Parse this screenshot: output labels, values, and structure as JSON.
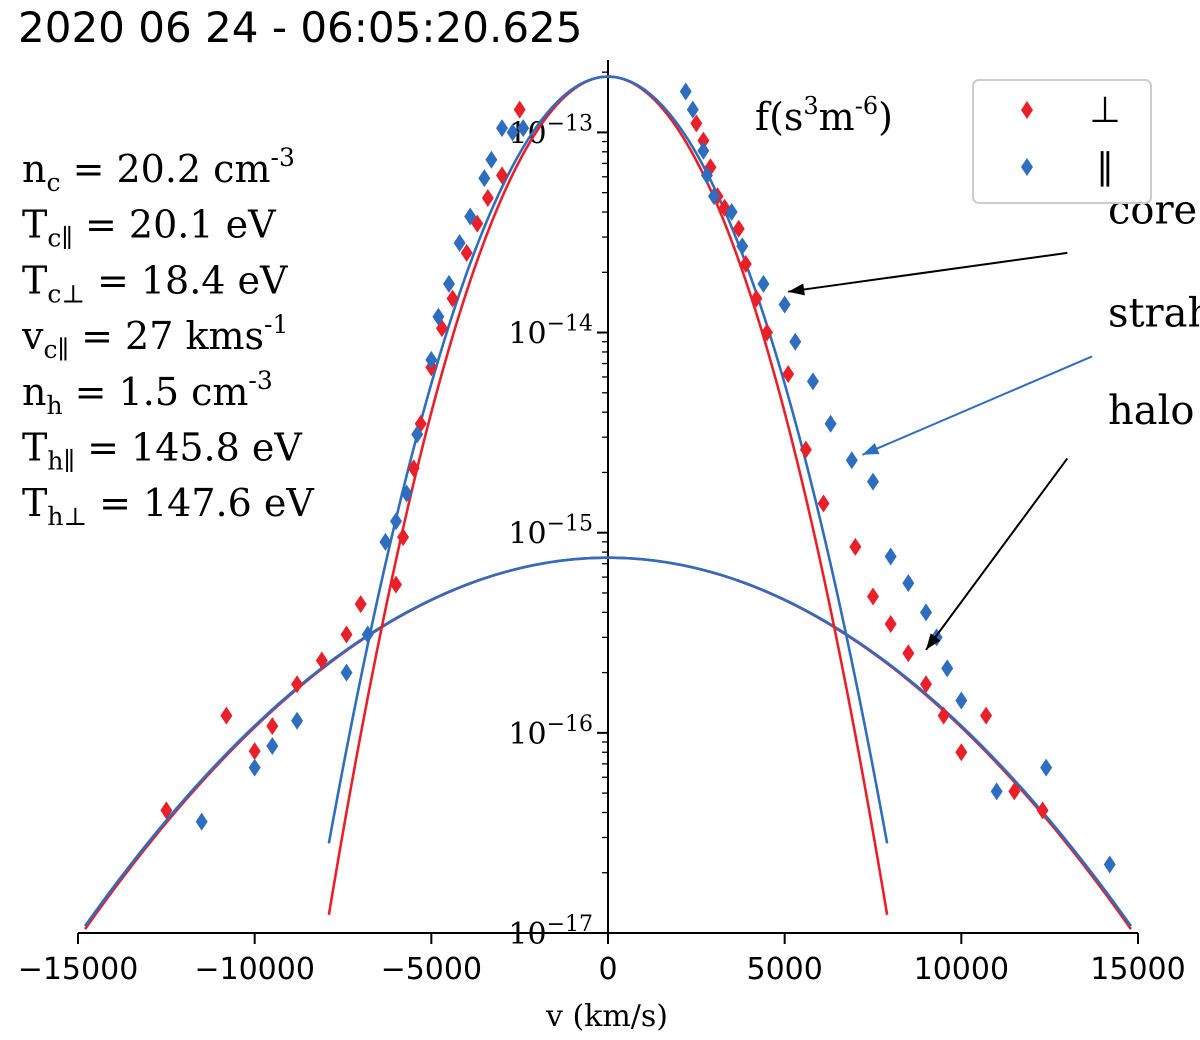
{
  "chart_data": {
    "type": "scatter",
    "title": "2020 06 24 - 06:05:20.625",
    "xlabel": "v (km/s)",
    "ylabel": "f(s^3m^-6)",
    "ylabel_parts": {
      "base": "f(s",
      "exp1": "3",
      "mid": "m",
      "exp2": "-6",
      "end": ")"
    },
    "xlim": [
      -15000,
      15000
    ],
    "ylim": [
      1e-17,
      2.3e-13
    ],
    "yscale": "log",
    "x_ticks": [
      {
        "value": -15000,
        "label": "−15000"
      },
      {
        "value": -10000,
        "label": "−10000"
      },
      {
        "value": -5000,
        "label": "−5000"
      },
      {
        "value": 0,
        "label": "0"
      },
      {
        "value": 5000,
        "label": "5000"
      },
      {
        "value": 10000,
        "label": "10000"
      },
      {
        "value": 15000,
        "label": "15000"
      }
    ],
    "y_ticks": [
      {
        "value": 1e-13,
        "base": "10",
        "exp": "−13"
      },
      {
        "value": 1e-14,
        "base": "10",
        "exp": "−14"
      },
      {
        "value": 1e-15,
        "base": "10",
        "exp": "−15"
      },
      {
        "value": 1e-16,
        "base": "10",
        "exp": "−16"
      },
      {
        "value": 1e-17,
        "base": "10",
        "exp": "−17"
      }
    ],
    "legend": {
      "position": "top-right",
      "entries": [
        {
          "label": "⊥",
          "color": "#e8202a",
          "marker": "diamond"
        },
        {
          "label": "∥",
          "color": "#2f6dbf",
          "marker": "diamond"
        }
      ]
    },
    "parameters": [
      {
        "sym": "n",
        "sub": "c",
        "text": " = 20.2 cm",
        "sup": "-3"
      },
      {
        "sym": "T",
        "sub": "c∥",
        "text": " = 20.1 eV",
        "sup": ""
      },
      {
        "sym": "T",
        "sub": "c⊥",
        "text": " = 18.4 eV",
        "sup": ""
      },
      {
        "sym": "v",
        "sub": "c∥",
        "text": " = 27 kms",
        "sup": "-1"
      },
      {
        "sym": "n",
        "sub": "h",
        "text": " = 1.5 cm",
        "sup": "-3"
      },
      {
        "sym": "T",
        "sub": "h∥",
        "text": " = 145.8 eV",
        "sup": ""
      },
      {
        "sym": "T",
        "sub": "h⊥",
        "text": " = 147.6 eV",
        "sup": ""
      }
    ],
    "annotations": [
      {
        "text": "core",
        "text_x": 14150,
        "text_y": 3.5e-14,
        "arrow_from": [
          13000,
          2.5e-14
        ],
        "arrow_to": [
          5100,
          1.6e-14
        ],
        "color": "#000000"
      },
      {
        "text": "strahl",
        "text_x": 14150,
        "text_y": 1.07e-14,
        "arrow_from": [
          13700,
          7.6e-15
        ],
        "arrow_to": [
          7200,
          2.45e-15
        ],
        "color": "#2f6dbf"
      },
      {
        "text": "halo",
        "text_x": 14150,
        "text_y": 3.5e-15,
        "arrow_from": [
          13000,
          2.35e-15
        ],
        "arrow_to": [
          9000,
          2.6e-16
        ],
        "color": "#000000"
      }
    ],
    "models": {
      "core_perp": {
        "color": "#e8202a",
        "amplitude": 1.9e-13,
        "width": 2544,
        "xmin": -7900,
        "xmax": 7900
      },
      "core_parallel": {
        "color": "#2f6dbf",
        "amplitude": 1.9e-13,
        "width": 2660,
        "xmin": -7900,
        "xmax": 7900
      },
      "halo_perp": {
        "color": "#e8202a",
        "amplitude": 7.5e-16,
        "width": 7160,
        "xmin": -14800,
        "xmax": 14800
      },
      "halo_parallel": {
        "color": "#2f6dbf",
        "amplitude": 7.5e-16,
        "width": 7190,
        "xmin": -14800,
        "xmax": 14800
      }
    },
    "series": [
      {
        "name": "⊥",
        "color": "#e8202a",
        "points": [
          [
            -12500,
            4.1e-17
          ],
          [
            -10800,
            1.22e-16
          ],
          [
            -10000,
            8.1e-17
          ],
          [
            -9500,
            1.08e-16
          ],
          [
            -8800,
            1.75e-16
          ],
          [
            -8100,
            2.3e-16
          ],
          [
            -7400,
            3.1e-16
          ],
          [
            -7000,
            4.4e-16
          ],
          [
            -6000,
            5.5e-16
          ],
          [
            -5800,
            9.5e-16
          ],
          [
            -5500,
            2.1e-15
          ],
          [
            -5300,
            3.5e-15
          ],
          [
            -5000,
            6.7e-15
          ],
          [
            -4700,
            1.05e-14
          ],
          [
            -4400,
            1.48e-14
          ],
          [
            -4000,
            2.5e-14
          ],
          [
            -3700,
            3.5e-14
          ],
          [
            -3400,
            4.7e-14
          ],
          [
            -3000,
            6.1e-14
          ],
          [
            -2500,
            1.3e-13
          ],
          [
            2500,
            1.11e-13
          ],
          [
            2700,
            9.1e-14
          ],
          [
            2900,
            6.7e-14
          ],
          [
            3100,
            4.8e-14
          ],
          [
            3300,
            4.2e-14
          ],
          [
            3700,
            3.3e-14
          ],
          [
            3900,
            2.2e-14
          ],
          [
            4200,
            1.48e-14
          ],
          [
            4500,
            1e-14
          ],
          [
            5100,
            6.2e-15
          ],
          [
            5600,
            2.6e-15
          ],
          [
            6100,
            1.4e-15
          ],
          [
            7000,
            8.5e-16
          ],
          [
            7500,
            4.8e-16
          ],
          [
            8000,
            3.5e-16
          ],
          [
            8500,
            2.5e-16
          ],
          [
            9000,
            1.75e-16
          ],
          [
            9500,
            1.22e-16
          ],
          [
            10000,
            8e-17
          ],
          [
            10700,
            1.22e-16
          ],
          [
            11500,
            5.1e-17
          ],
          [
            12300,
            4.1e-17
          ]
        ]
      },
      {
        "name": "∥",
        "color": "#2f6dbf",
        "points": [
          [
            -11500,
            3.6e-17
          ],
          [
            -10000,
            6.7e-17
          ],
          [
            -9500,
            8.6e-17
          ],
          [
            -8800,
            1.15e-16
          ],
          [
            -7400,
            2e-16
          ],
          [
            -6800,
            3.1e-16
          ],
          [
            -6300,
            9e-16
          ],
          [
            -6000,
            1.14e-15
          ],
          [
            -5700,
            1.57e-15
          ],
          [
            -5400,
            3.1e-15
          ],
          [
            -5000,
            7.3e-15
          ],
          [
            -4800,
            1.2e-14
          ],
          [
            -4500,
            1.75e-14
          ],
          [
            -4200,
            2.8e-14
          ],
          [
            -3900,
            3.8e-14
          ],
          [
            -3500,
            5.9e-14
          ],
          [
            -3300,
            7.3e-14
          ],
          [
            -3000,
            1.05e-13
          ],
          [
            -2700,
            1e-13
          ],
          [
            -2400,
            1.05e-13
          ],
          [
            2200,
            1.6e-13
          ],
          [
            2400,
            1.3e-13
          ],
          [
            2700,
            8.1e-14
          ],
          [
            2800,
            6.1e-14
          ],
          [
            3000,
            4.8e-14
          ],
          [
            3500,
            4e-14
          ],
          [
            3800,
            2.7e-14
          ],
          [
            4400,
            1.75e-14
          ],
          [
            5000,
            1.38e-14
          ],
          [
            5300,
            9e-15
          ],
          [
            5800,
            5.7e-15
          ],
          [
            6300,
            3.5e-15
          ],
          [
            6900,
            2.3e-15
          ],
          [
            7500,
            1.8e-15
          ],
          [
            8000,
            7.6e-16
          ],
          [
            8500,
            5.6e-16
          ],
          [
            9000,
            4e-16
          ],
          [
            9300,
            3e-16
          ],
          [
            9600,
            2.1e-16
          ],
          [
            10000,
            1.45e-16
          ],
          [
            11000,
            5.1e-17
          ],
          [
            12400,
            6.7e-17
          ],
          [
            14200,
            2.2e-17
          ]
        ]
      }
    ]
  }
}
